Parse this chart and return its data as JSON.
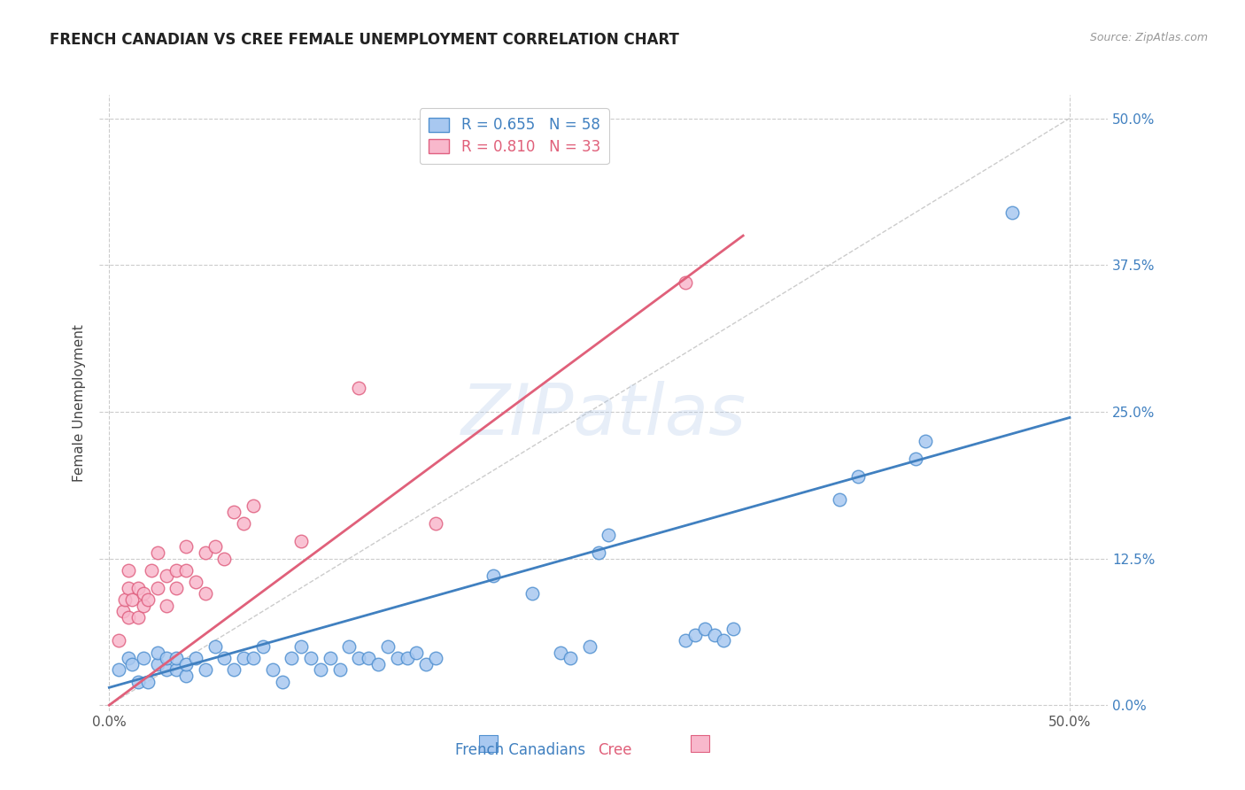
{
  "title": "FRENCH CANADIAN VS CREE FEMALE UNEMPLOYMENT CORRELATION CHART",
  "source": "Source: ZipAtlas.com",
  "ylabel": "Female Unemployment",
  "y_tick_labels": [
    "0.0%",
    "12.5%",
    "25.0%",
    "37.5%",
    "50.0%"
  ],
  "y_tick_positions": [
    0.0,
    0.125,
    0.25,
    0.375,
    0.5
  ],
  "x_tick_positions": [
    0.0,
    0.5
  ],
  "x_tick_labels": [
    "0.0%",
    "50.0%"
  ],
  "xlim": [
    -0.005,
    0.52
  ],
  "ylim": [
    -0.005,
    0.52
  ],
  "watermark_text": "ZIPatlas",
  "french_canadian_fill": "#a8c8f0",
  "french_canadian_edge": "#5090d0",
  "cree_fill": "#f8b8cc",
  "cree_edge": "#e06080",
  "french_canadian_line_color": "#4080c0",
  "cree_line_color": "#e0607a",
  "diagonal_color": "#cccccc",
  "legend_fc_R": "0.655",
  "legend_fc_N": "58",
  "legend_cree_R": "0.810",
  "legend_cree_N": "33",
  "legend_label_fc": "French Canadians",
  "legend_label_cree": "Cree",
  "fc_line_x": [
    0.0,
    0.5
  ],
  "fc_line_y": [
    0.015,
    0.245
  ],
  "cree_line_x": [
    0.0,
    0.33
  ],
  "cree_line_y": [
    0.0,
    0.4
  ],
  "fc_scatter": [
    [
      0.005,
      0.03
    ],
    [
      0.01,
      0.04
    ],
    [
      0.012,
      0.035
    ],
    [
      0.015,
      0.02
    ],
    [
      0.018,
      0.04
    ],
    [
      0.02,
      0.02
    ],
    [
      0.025,
      0.035
    ],
    [
      0.025,
      0.045
    ],
    [
      0.03,
      0.03
    ],
    [
      0.03,
      0.04
    ],
    [
      0.035,
      0.03
    ],
    [
      0.035,
      0.04
    ],
    [
      0.04,
      0.025
    ],
    [
      0.04,
      0.035
    ],
    [
      0.045,
      0.04
    ],
    [
      0.05,
      0.03
    ],
    [
      0.055,
      0.05
    ],
    [
      0.06,
      0.04
    ],
    [
      0.065,
      0.03
    ],
    [
      0.07,
      0.04
    ],
    [
      0.075,
      0.04
    ],
    [
      0.08,
      0.05
    ],
    [
      0.085,
      0.03
    ],
    [
      0.09,
      0.02
    ],
    [
      0.095,
      0.04
    ],
    [
      0.1,
      0.05
    ],
    [
      0.105,
      0.04
    ],
    [
      0.11,
      0.03
    ],
    [
      0.115,
      0.04
    ],
    [
      0.12,
      0.03
    ],
    [
      0.125,
      0.05
    ],
    [
      0.13,
      0.04
    ],
    [
      0.135,
      0.04
    ],
    [
      0.14,
      0.035
    ],
    [
      0.145,
      0.05
    ],
    [
      0.15,
      0.04
    ],
    [
      0.155,
      0.04
    ],
    [
      0.16,
      0.045
    ],
    [
      0.165,
      0.035
    ],
    [
      0.17,
      0.04
    ],
    [
      0.2,
      0.11
    ],
    [
      0.22,
      0.095
    ],
    [
      0.235,
      0.045
    ],
    [
      0.24,
      0.04
    ],
    [
      0.25,
      0.05
    ],
    [
      0.255,
      0.13
    ],
    [
      0.26,
      0.145
    ],
    [
      0.3,
      0.055
    ],
    [
      0.305,
      0.06
    ],
    [
      0.31,
      0.065
    ],
    [
      0.315,
      0.06
    ],
    [
      0.32,
      0.055
    ],
    [
      0.325,
      0.065
    ],
    [
      0.38,
      0.175
    ],
    [
      0.39,
      0.195
    ],
    [
      0.42,
      0.21
    ],
    [
      0.425,
      0.225
    ],
    [
      0.47,
      0.42
    ]
  ],
  "cree_scatter": [
    [
      0.005,
      0.055
    ],
    [
      0.007,
      0.08
    ],
    [
      0.008,
      0.09
    ],
    [
      0.01,
      0.075
    ],
    [
      0.01,
      0.1
    ],
    [
      0.01,
      0.115
    ],
    [
      0.012,
      0.09
    ],
    [
      0.015,
      0.075
    ],
    [
      0.015,
      0.1
    ],
    [
      0.018,
      0.085
    ],
    [
      0.018,
      0.095
    ],
    [
      0.02,
      0.09
    ],
    [
      0.022,
      0.115
    ],
    [
      0.025,
      0.1
    ],
    [
      0.025,
      0.13
    ],
    [
      0.03,
      0.085
    ],
    [
      0.03,
      0.11
    ],
    [
      0.035,
      0.115
    ],
    [
      0.035,
      0.1
    ],
    [
      0.04,
      0.115
    ],
    [
      0.04,
      0.135
    ],
    [
      0.045,
      0.105
    ],
    [
      0.05,
      0.095
    ],
    [
      0.05,
      0.13
    ],
    [
      0.055,
      0.135
    ],
    [
      0.06,
      0.125
    ],
    [
      0.065,
      0.165
    ],
    [
      0.07,
      0.155
    ],
    [
      0.075,
      0.17
    ],
    [
      0.1,
      0.14
    ],
    [
      0.13,
      0.27
    ],
    [
      0.17,
      0.155
    ],
    [
      0.3,
      0.36
    ]
  ]
}
